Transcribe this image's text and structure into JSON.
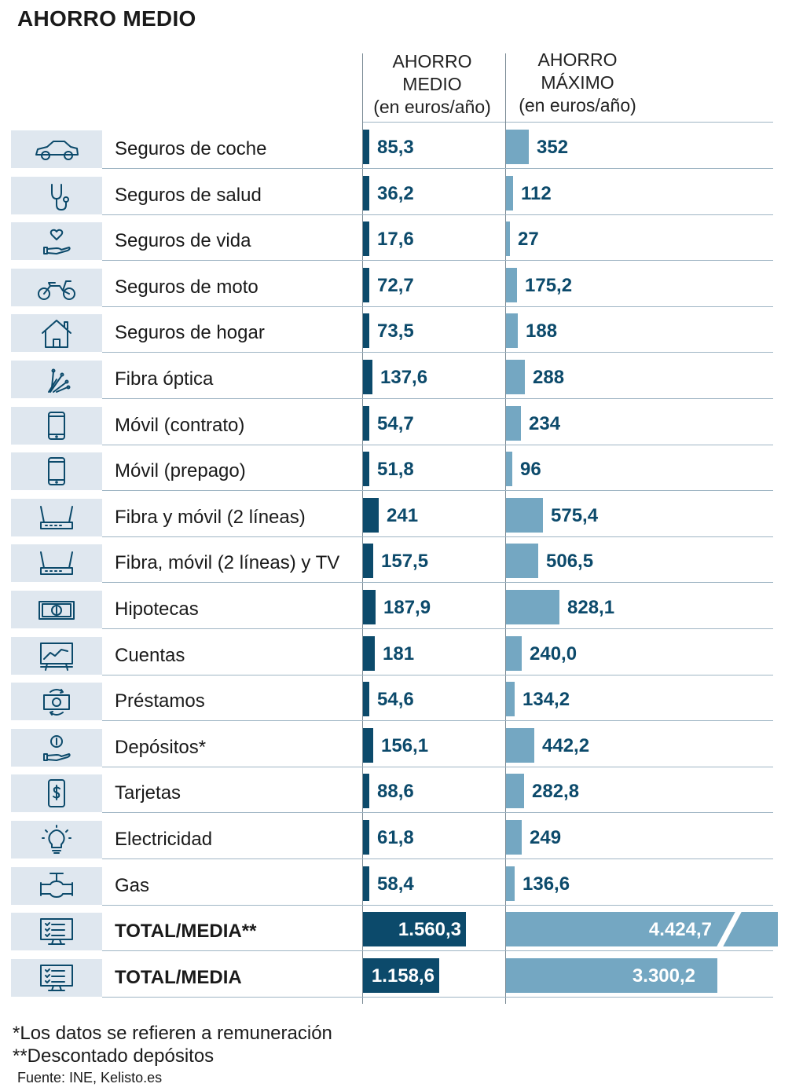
{
  "title": "AHORRO MEDIO",
  "columns": {
    "medio": {
      "line1": "AHORRO",
      "line2": "MEDIO",
      "line3": "(en euros/año)"
    },
    "maximo": {
      "line1": "AHORRO",
      "line2": "MÁXIMO",
      "line3": "(en euros/año)"
    }
  },
  "colors": {
    "medio_bar": "#0c4a6b",
    "maximo_bar": "#74a7c2",
    "icon_bg": "#dfe7ef"
  },
  "chart_data": {
    "type": "bar",
    "title": "AHORRO MEDIO",
    "series": [
      {
        "name": "AHORRO MEDIO (en euros/año)",
        "values": [
          85.3,
          36.2,
          17.6,
          72.7,
          73.5,
          137.6,
          54.7,
          51.8,
          241,
          157.5,
          187.9,
          181,
          54.6,
          156.1,
          88.6,
          61.8,
          58.4,
          1560.3,
          1158.6
        ]
      },
      {
        "name": "AHORRO MÁXIMO (en euros/año)",
        "values": [
          352,
          112,
          27,
          175.2,
          188,
          288,
          234,
          96,
          575.4,
          506.5,
          828.1,
          240.0,
          134.2,
          442.2,
          282.8,
          249,
          136.6,
          4424.7,
          3300.2
        ]
      }
    ],
    "rows": [
      {
        "label": "Seguros de coche",
        "icon": "car-icon",
        "medio": 85.3,
        "medio_text": "85,3",
        "maximo": 352,
        "maximo_text": "352",
        "bold": false
      },
      {
        "label": "Seguros de salud",
        "icon": "stethoscope-icon",
        "medio": 36.2,
        "medio_text": "36,2",
        "maximo": 112,
        "maximo_text": "112",
        "bold": false
      },
      {
        "label": "Seguros de vida",
        "icon": "heart-hand-icon",
        "medio": 17.6,
        "medio_text": "17,6",
        "maximo": 27,
        "maximo_text": "27",
        "bold": false
      },
      {
        "label": "Seguros de moto",
        "icon": "motorcycle-icon",
        "medio": 72.7,
        "medio_text": "72,7",
        "maximo": 175.2,
        "maximo_text": "175,2",
        "bold": false
      },
      {
        "label": "Seguros de hogar",
        "icon": "house-icon",
        "medio": 73.5,
        "medio_text": "73,5",
        "maximo": 188,
        "maximo_text": "188",
        "bold": false
      },
      {
        "label": "Fibra óptica",
        "icon": "fiber-optic-icon",
        "medio": 137.6,
        "medio_text": "137,6",
        "maximo": 288,
        "maximo_text": "288",
        "bold": false
      },
      {
        "label": "Móvil (contrato)",
        "icon": "phone-icon",
        "medio": 54.7,
        "medio_text": "54,7",
        "maximo": 234,
        "maximo_text": "234",
        "bold": false
      },
      {
        "label": "Móvil (prepago)",
        "icon": "phone-icon",
        "medio": 51.8,
        "medio_text": "51,8",
        "maximo": 96,
        "maximo_text": "96",
        "bold": false
      },
      {
        "label": "Fibra y móvil (2 líneas)",
        "icon": "router-icon",
        "medio": 241,
        "medio_text": "241",
        "maximo": 575.4,
        "maximo_text": "575,4",
        "bold": false
      },
      {
        "label": "Fibra, móvil (2 líneas) y TV",
        "icon": "router-icon",
        "medio": 157.5,
        "medio_text": "157,5",
        "maximo": 506.5,
        "maximo_text": "506,5",
        "bold": false
      },
      {
        "label": "Hipotecas",
        "icon": "banknote-icon",
        "medio": 187.9,
        "medio_text": "187,9",
        "maximo": 828.1,
        "maximo_text": "828,1",
        "bold": false
      },
      {
        "label": "Cuentas",
        "icon": "chart-board-icon",
        "medio": 181,
        "medio_text": "181",
        "maximo": 240.0,
        "maximo_text": "240,0",
        "bold": false
      },
      {
        "label": "Préstamos",
        "icon": "money-exchange-icon",
        "medio": 54.6,
        "medio_text": "54,6",
        "maximo": 134.2,
        "maximo_text": "134,2",
        "bold": false
      },
      {
        "label": "Depósitos*",
        "icon": "coin-hand-icon",
        "medio": 156.1,
        "medio_text": "156,1",
        "maximo": 442.2,
        "maximo_text": "442,2",
        "bold": false
      },
      {
        "label": "Tarjetas",
        "icon": "dollar-phone-icon",
        "medio": 88.6,
        "medio_text": "88,6",
        "maximo": 282.8,
        "maximo_text": "282,8",
        "bold": false
      },
      {
        "label": "Electricidad",
        "icon": "lightbulb-icon",
        "medio": 61.8,
        "medio_text": "61,8",
        "maximo": 249,
        "maximo_text": "249",
        "bold": false
      },
      {
        "label": "Gas",
        "icon": "gas-valve-icon",
        "medio": 58.4,
        "medio_text": "58,4",
        "maximo": 136.6,
        "maximo_text": "136,6",
        "bold": false
      },
      {
        "label": "TOTAL/MEDIA**",
        "icon": "checklist-monitor-icon",
        "medio": 1560.3,
        "medio_text": "1.560,3",
        "maximo": 4424.7,
        "maximo_text": "4.424,7",
        "bold": true,
        "truncated": true
      },
      {
        "label": "TOTAL/MEDIA",
        "icon": "checklist-monitor-icon",
        "medio": 1158.6,
        "medio_text": "1.158,6",
        "maximo": 3300.2,
        "maximo_text": "3.300,2",
        "bold": true,
        "truncated": false
      }
    ]
  },
  "footnotes": {
    "note1": "*Los datos se refieren a remuneración",
    "note2": "**Descontado depósitos",
    "source": "Fuente: INE, Kelisto.es"
  }
}
